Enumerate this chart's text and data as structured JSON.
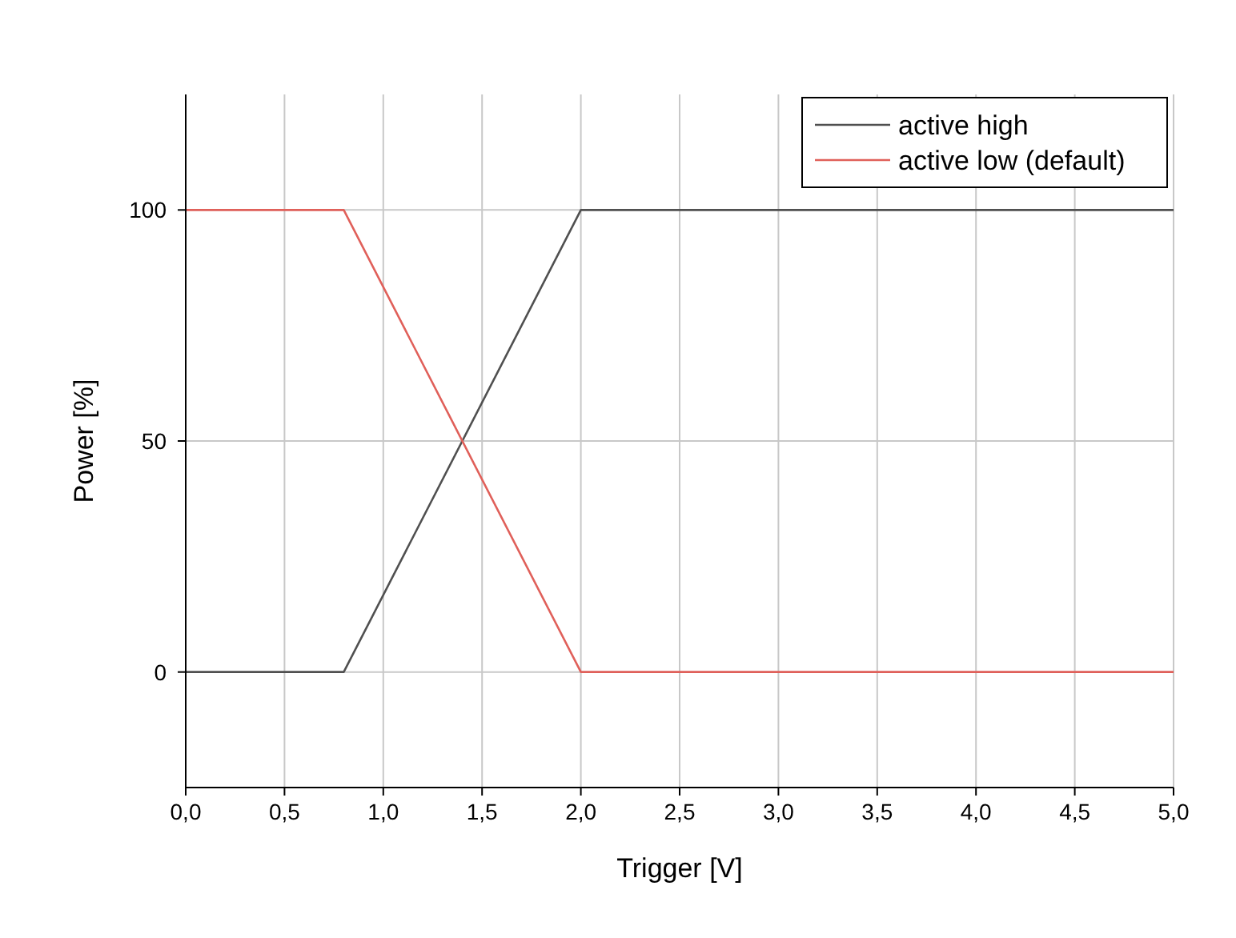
{
  "chart_data": {
    "type": "line",
    "xlabel": "Trigger [V]",
    "ylabel": "Power [%]",
    "xlim": [
      0,
      5
    ],
    "xticks": [
      {
        "value": 0,
        "label": "0,0"
      },
      {
        "value": 0.5,
        "label": "0,5"
      },
      {
        "value": 1,
        "label": "1,0"
      },
      {
        "value": 1.5,
        "label": "1,5"
      },
      {
        "value": 2,
        "label": "2,0"
      },
      {
        "value": 2.5,
        "label": "2,5"
      },
      {
        "value": 3,
        "label": "3,0"
      },
      {
        "value": 3.5,
        "label": "3,5"
      },
      {
        "value": 4,
        "label": "4,0"
      },
      {
        "value": 4.5,
        "label": "4,5"
      },
      {
        "value": 5,
        "label": "5,0"
      }
    ],
    "ylim": [
      -25,
      125
    ],
    "yticks": [
      0,
      50,
      100
    ],
    "grid": true,
    "legend": "top right",
    "line_style": "solid",
    "marker": "none",
    "series": [
      {
        "name": "active high",
        "color": "#505050",
        "x": [
          0,
          0.8,
          2,
          5
        ],
        "values": [
          0,
          0,
          100,
          100
        ]
      },
      {
        "name": "active low (default)",
        "color": "#e0605a",
        "x": [
          0,
          0.8,
          2,
          5
        ],
        "values": [
          100,
          100,
          0,
          0
        ]
      }
    ]
  }
}
